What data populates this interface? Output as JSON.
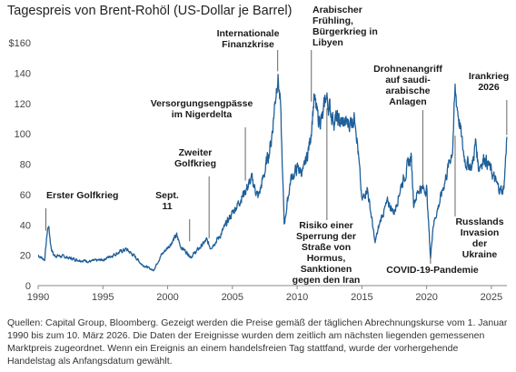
{
  "title": "Tagespreis von Brent-Rohöl (US-Dollar je Barrel)",
  "footer": "Quellen: Capital Group, Bloomberg. Gezeigt werden die Preise gemäß der täglichen Abrechnungskurse vom 1. Januar 1990 bis zum 10. März 2026. Die Daten der Ereignisse wurden dem zeitlich am nächsten liegenden gemessenen Marktpreis zugeordnet. Wenn ein Ereignis an einem handelsfreien Tag stattfand, wurde der vorhergehende Handelstag als Anfangsdatum gewählt.",
  "colors": {
    "line": "#1f5f99",
    "marker": "#555555",
    "axis": "#888888"
  },
  "chart_data": {
    "type": "line",
    "title": "Tagespreis von Brent-Rohöl (US-Dollar je Barrel)",
    "xlim": [
      1990,
      2026.2
    ],
    "ylim": [
      0,
      160
    ],
    "x_ticks": [
      {
        "value": 1990,
        "label": "1990"
      },
      {
        "value": 1995,
        "label": "1995"
      },
      {
        "value": 2000,
        "label": "2000"
      },
      {
        "value": 2005,
        "label": "2005"
      },
      {
        "value": 2010,
        "label": "2010"
      },
      {
        "value": 2015,
        "label": "2015"
      },
      {
        "value": 2020,
        "label": "2020"
      },
      {
        "value": 2025,
        "label": "2025"
      }
    ],
    "y_ticks": [
      {
        "value": 0,
        "label": "0"
      },
      {
        "value": 20,
        "label": "20"
      },
      {
        "value": 40,
        "label": "40"
      },
      {
        "value": 60,
        "label": "60"
      },
      {
        "value": 80,
        "label": "80"
      },
      {
        "value": 100,
        "label": "100"
      },
      {
        "value": 120,
        "label": "120"
      },
      {
        "value": 140,
        "label": "140"
      },
      {
        "value": 160,
        "label": "$160"
      }
    ],
    "series": [
      {
        "x": [
          1990.0,
          1990.5,
          1990.7,
          1990.8,
          1991.0,
          1991.2,
          1992.0,
          1993.0,
          1994.0,
          1995.0,
          1996.0,
          1996.8,
          1997.5,
          1998.0,
          1998.9,
          1999.5,
          2000.0,
          2000.7,
          2001.0,
          2001.8,
          2002.5,
          2003.0,
          2003.3,
          2004.0,
          2004.8,
          2005.5,
          2006.5,
          2007.0,
          2007.5,
          2008.0,
          2008.5,
          2008.7,
          2009.0,
          2009.5,
          2010.0,
          2010.5,
          2011.0,
          2011.3,
          2011.6,
          2012.0,
          2012.2,
          2012.8,
          2013.5,
          2014.0,
          2014.5,
          2015.0,
          2015.4,
          2015.8,
          2016.0,
          2016.5,
          2017.0,
          2017.5,
          2018.0,
          2018.8,
          2019.0,
          2019.5,
          2019.8,
          2020.0,
          2020.3,
          2020.5,
          2021.0,
          2021.5,
          2022.0,
          2022.2,
          2022.5,
          2022.8,
          2023.0,
          2023.5,
          2023.8,
          2024.0,
          2024.5,
          2025.0,
          2025.5,
          2025.9,
          2026.0,
          2026.19
        ],
        "y": [
          20,
          17,
          35,
          40,
          25,
          20,
          19,
          17,
          16,
          17,
          21,
          24,
          19,
          14,
          10,
          20,
          25,
          33,
          26,
          19,
          25,
          30,
          25,
          32,
          45,
          55,
          70,
          58,
          75,
          95,
          140,
          120,
          40,
          70,
          77,
          75,
          95,
          123,
          110,
          110,
          125,
          110,
          107,
          107,
          112,
          55,
          65,
          42,
          28,
          45,
          55,
          48,
          65,
          85,
          55,
          65,
          63,
          64,
          18,
          40,
          55,
          72,
          90,
          128,
          110,
          90,
          82,
          78,
          95,
          78,
          85,
          75,
          65,
          62,
          68,
          98
        ]
      }
    ],
    "annotations": [
      {
        "x": 1990.6,
        "y": 35,
        "lines": [
          "Erster Golfkrieg"
        ]
      },
      {
        "x": 2001.7,
        "y": 28,
        "lines": [
          "Sept.",
          "11"
        ]
      },
      {
        "x": 2003.2,
        "y": 30,
        "lines": [
          "Zweiter",
          "Golfkrieg"
        ]
      },
      {
        "x": 2006.0,
        "y": 68,
        "lines": [
          "Versorgungsengpässe",
          "im Nigerdelta"
        ]
      },
      {
        "x": 2008.5,
        "y": 140,
        "lines": [
          "Internationale",
          "Finanzkrise"
        ]
      },
      {
        "x": 2011.1,
        "y": 120,
        "lines": [
          "Arabischer",
          "Frühling,",
          "Bürgerkrieg in",
          "Libyen"
        ]
      },
      {
        "x": 2012.3,
        "y": 118,
        "lines": [
          "Risiko einer",
          "Sperrung der",
          "Straße von",
          "Hormus,",
          "Sanktionen",
          "gegen den Iran"
        ]
      },
      {
        "x": 2019.7,
        "y": 65,
        "lines": [
          "Drohnenangriff",
          "auf saudi-",
          "arabische",
          "Anlagen"
        ]
      },
      {
        "x": 2020.3,
        "y": 22,
        "lines": [
          "COVID-19-Pandemie"
        ]
      },
      {
        "x": 2022.2,
        "y": 100,
        "lines": [
          "Russlands",
          "Invasion",
          "der",
          "Ukraine"
        ]
      },
      {
        "x": 2026.19,
        "y": 98,
        "lines": [
          "Irankrieg",
          "2026"
        ]
      }
    ]
  }
}
